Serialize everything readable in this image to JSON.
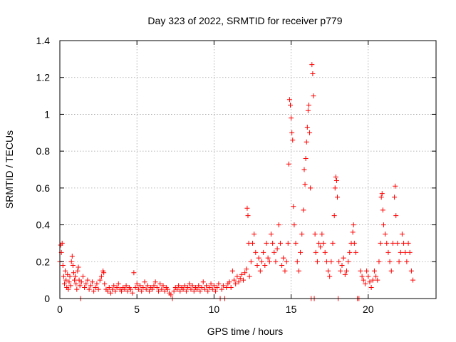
{
  "chart_data": {
    "type": "scatter",
    "title": "Day 323 of 2022, SRMTID for receiver p779",
    "xlabel": "GPS time / hours",
    "ylabel": "SRMTID / TECUs",
    "xlim": [
      0,
      24.4
    ],
    "ylim": [
      0,
      1.4
    ],
    "grid": true,
    "xticks": [
      0,
      5,
      10,
      15,
      20
    ],
    "xtick_labels": [
      "0",
      "5",
      "10",
      "15",
      "20"
    ],
    "yticks": [
      0,
      0.2,
      0.4,
      0.6,
      0.8,
      1.0,
      1.2,
      1.4
    ],
    "ytick_labels": [
      "0",
      "0.2",
      "0.4",
      "0.6",
      "0.8",
      "1",
      "1.2",
      "1.4"
    ],
    "marker": "+",
    "color": "#ff0000",
    "series": [
      {
        "name": "p779",
        "points": [
          [
            0.0,
            0.2
          ],
          [
            0.05,
            0.29
          ],
          [
            0.1,
            0.25
          ],
          [
            0.15,
            0.3
          ],
          [
            0.2,
            0.18
          ],
          [
            0.25,
            0.12
          ],
          [
            0.3,
            0.08
          ],
          [
            0.35,
            0.15
          ],
          [
            0.4,
            0.1
          ],
          [
            0.45,
            0.06
          ],
          [
            0.5,
            0.13
          ],
          [
            0.55,
            0.05
          ],
          [
            0.6,
            0.09
          ],
          [
            0.65,
            0.12
          ],
          [
            0.7,
            0.07
          ],
          [
            0.75,
            0.2
          ],
          [
            0.8,
            0.23
          ],
          [
            0.85,
            0.18
          ],
          [
            0.9,
            0.14
          ],
          [
            0.95,
            0.1
          ],
          [
            1.0,
            0.12
          ],
          [
            1.05,
            0.08
          ],
          [
            1.1,
            0.05
          ],
          [
            1.15,
            0.15
          ],
          [
            1.2,
            0.17
          ],
          [
            1.25,
            0.1
          ],
          [
            1.3,
            0.07
          ],
          [
            1.35,
            0.0
          ],
          [
            1.4,
            0.09
          ],
          [
            1.5,
            0.12
          ],
          [
            1.6,
            0.06
          ],
          [
            1.7,
            0.08
          ],
          [
            1.8,
            0.1
          ],
          [
            1.9,
            0.05
          ],
          [
            2.0,
            0.07
          ],
          [
            2.1,
            0.09
          ],
          [
            2.2,
            0.04
          ],
          [
            2.3,
            0.06
          ],
          [
            2.4,
            0.08
          ],
          [
            2.5,
            0.05
          ],
          [
            2.6,
            0.1
          ],
          [
            2.7,
            0.12
          ],
          [
            2.8,
            0.15
          ],
          [
            2.85,
            0.14
          ],
          [
            2.9,
            0.08
          ],
          [
            3.0,
            0.05
          ],
          [
            3.1,
            0.04
          ],
          [
            3.2,
            0.06
          ],
          [
            3.3,
            0.03
          ],
          [
            3.4,
            0.05
          ],
          [
            3.5,
            0.07
          ],
          [
            3.6,
            0.04
          ],
          [
            3.7,
            0.06
          ],
          [
            3.8,
            0.08
          ],
          [
            3.9,
            0.05
          ],
          [
            4.0,
            0.04
          ],
          [
            4.1,
            0.06
          ],
          [
            4.2,
            0.05
          ],
          [
            4.3,
            0.07
          ],
          [
            4.4,
            0.04
          ],
          [
            4.5,
            0.06
          ],
          [
            4.6,
            0.05
          ],
          [
            4.7,
            0.03
          ],
          [
            4.8,
            0.14
          ],
          [
            4.9,
            0.06
          ],
          [
            5.0,
            0.08
          ],
          [
            5.1,
            0.05
          ],
          [
            5.2,
            0.07
          ],
          [
            5.3,
            0.04
          ],
          [
            5.4,
            0.06
          ],
          [
            5.5,
            0.09
          ],
          [
            5.6,
            0.05
          ],
          [
            5.7,
            0.07
          ],
          [
            5.8,
            0.04
          ],
          [
            5.9,
            0.06
          ],
          [
            6.0,
            0.05
          ],
          [
            6.1,
            0.07
          ],
          [
            6.2,
            0.09
          ],
          [
            6.3,
            0.06
          ],
          [
            6.4,
            0.04
          ],
          [
            6.5,
            0.08
          ],
          [
            6.6,
            0.05
          ],
          [
            6.7,
            0.07
          ],
          [
            6.8,
            0.04
          ],
          [
            6.9,
            0.06
          ],
          [
            7.0,
            0.05
          ],
          [
            7.1,
            0.03
          ],
          [
            7.2,
            0.02
          ],
          [
            7.3,
            0.0
          ],
          [
            7.4,
            0.04
          ],
          [
            7.5,
            0.06
          ],
          [
            7.6,
            0.05
          ],
          [
            7.7,
            0.07
          ],
          [
            7.8,
            0.04
          ],
          [
            7.9,
            0.06
          ],
          [
            8.0,
            0.05
          ],
          [
            8.1,
            0.07
          ],
          [
            8.2,
            0.04
          ],
          [
            8.3,
            0.06
          ],
          [
            8.4,
            0.08
          ],
          [
            8.5,
            0.05
          ],
          [
            8.6,
            0.07
          ],
          [
            8.7,
            0.04
          ],
          [
            8.8,
            0.06
          ],
          [
            8.9,
            0.05
          ],
          [
            9.0,
            0.07
          ],
          [
            9.1,
            0.04
          ],
          [
            9.2,
            0.06
          ],
          [
            9.3,
            0.09
          ],
          [
            9.4,
            0.05
          ],
          [
            9.5,
            0.07
          ],
          [
            9.6,
            0.04
          ],
          [
            9.7,
            0.06
          ],
          [
            9.8,
            0.08
          ],
          [
            9.9,
            0.05
          ],
          [
            10.0,
            0.07
          ],
          [
            10.1,
            0.04
          ],
          [
            10.2,
            0.06
          ],
          [
            10.3,
            0.08
          ],
          [
            10.4,
            0.0
          ],
          [
            10.5,
            0.05
          ],
          [
            10.6,
            0.07
          ],
          [
            10.7,
            0.0
          ],
          [
            10.8,
            0.06
          ],
          [
            10.9,
            0.08
          ],
          [
            11.0,
            0.09
          ],
          [
            11.1,
            0.06
          ],
          [
            11.2,
            0.15
          ],
          [
            11.3,
            0.1
          ],
          [
            11.4,
            0.08
          ],
          [
            11.5,
            0.12
          ],
          [
            11.6,
            0.09
          ],
          [
            11.7,
            0.11
          ],
          [
            11.8,
            0.13
          ],
          [
            11.9,
            0.1
          ],
          [
            12.0,
            0.14
          ],
          [
            12.1,
            0.16
          ],
          [
            12.15,
            0.49
          ],
          [
            12.2,
            0.45
          ],
          [
            12.25,
            0.3
          ],
          [
            12.3,
            0.12
          ],
          [
            12.4,
            0.2
          ],
          [
            12.5,
            0.3
          ],
          [
            12.6,
            0.35
          ],
          [
            12.7,
            0.25
          ],
          [
            12.8,
            0.18
          ],
          [
            12.9,
            0.22
          ],
          [
            13.0,
            0.15
          ],
          [
            13.1,
            0.2
          ],
          [
            13.2,
            0.25
          ],
          [
            13.3,
            0.18
          ],
          [
            13.4,
            0.3
          ],
          [
            13.5,
            0.22
          ],
          [
            13.6,
            0.2
          ],
          [
            13.7,
            0.35
          ],
          [
            13.8,
            0.3
          ],
          [
            13.9,
            0.25
          ],
          [
            14.0,
            0.2
          ],
          [
            14.1,
            0.27
          ],
          [
            14.2,
            0.4
          ],
          [
            14.3,
            0.3
          ],
          [
            14.4,
            0.18
          ],
          [
            14.5,
            0.22
          ],
          [
            14.6,
            0.15
          ],
          [
            14.7,
            0.2
          ],
          [
            14.8,
            0.3
          ],
          [
            14.85,
            0.73
          ],
          [
            14.9,
            1.08
          ],
          [
            14.95,
            1.05
          ],
          [
            15.0,
            0.98
          ],
          [
            15.05,
            0.9
          ],
          [
            15.1,
            0.86
          ],
          [
            15.15,
            0.5
          ],
          [
            15.2,
            0.4
          ],
          [
            15.3,
            0.3
          ],
          [
            15.4,
            0.2
          ],
          [
            15.5,
            0.15
          ],
          [
            15.6,
            0.25
          ],
          [
            15.7,
            0.35
          ],
          [
            15.8,
            0.48
          ],
          [
            15.85,
            0.7
          ],
          [
            15.9,
            0.62
          ],
          [
            15.95,
            0.76
          ],
          [
            16.0,
            0.85
          ],
          [
            16.05,
            0.93
          ],
          [
            16.1,
            1.02
          ],
          [
            16.15,
            1.05
          ],
          [
            16.2,
            0.9
          ],
          [
            16.25,
            0.6
          ],
          [
            16.3,
            0.0
          ],
          [
            16.35,
            1.27
          ],
          [
            16.4,
            1.22
          ],
          [
            16.45,
            1.1
          ],
          [
            16.5,
            0.0
          ],
          [
            16.55,
            0.35
          ],
          [
            16.6,
            0.25
          ],
          [
            16.7,
            0.2
          ],
          [
            16.8,
            0.3
          ],
          [
            16.9,
            0.28
          ],
          [
            17.0,
            0.35
          ],
          [
            17.1,
            0.3
          ],
          [
            17.2,
            0.25
          ],
          [
            17.3,
            0.2
          ],
          [
            17.4,
            0.15
          ],
          [
            17.5,
            0.12
          ],
          [
            17.6,
            0.2
          ],
          [
            17.7,
            0.3
          ],
          [
            17.8,
            0.45
          ],
          [
            17.85,
            0.6
          ],
          [
            17.9,
            0.66
          ],
          [
            17.95,
            0.64
          ],
          [
            18.0,
            0.55
          ],
          [
            18.05,
            0.0
          ],
          [
            18.1,
            0.2
          ],
          [
            18.2,
            0.15
          ],
          [
            18.3,
            0.18
          ],
          [
            18.4,
            0.22
          ],
          [
            18.5,
            0.13
          ],
          [
            18.6,
            0.15
          ],
          [
            18.7,
            0.2
          ],
          [
            18.8,
            0.25
          ],
          [
            18.9,
            0.3
          ],
          [
            19.0,
            0.36
          ],
          [
            19.05,
            0.4
          ],
          [
            19.1,
            0.3
          ],
          [
            19.2,
            0.25
          ],
          [
            19.3,
            0.0
          ],
          [
            19.4,
            0.0
          ],
          [
            19.5,
            0.15
          ],
          [
            19.6,
            0.12
          ],
          [
            19.7,
            0.1
          ],
          [
            19.8,
            0.08
          ],
          [
            19.9,
            0.15
          ],
          [
            20.0,
            0.12
          ],
          [
            20.1,
            0.09
          ],
          [
            20.2,
            0.06
          ],
          [
            20.3,
            0.1
          ],
          [
            20.4,
            0.15
          ],
          [
            20.5,
            0.12
          ],
          [
            20.6,
            0.1
          ],
          [
            20.7,
            0.2
          ],
          [
            20.8,
            0.3
          ],
          [
            20.85,
            0.55
          ],
          [
            20.9,
            0.57
          ],
          [
            20.95,
            0.48
          ],
          [
            21.0,
            0.4
          ],
          [
            21.1,
            0.35
          ],
          [
            21.2,
            0.3
          ],
          [
            21.3,
            0.25
          ],
          [
            21.4,
            0.2
          ],
          [
            21.5,
            0.15
          ],
          [
            21.6,
            0.3
          ],
          [
            21.7,
            0.55
          ],
          [
            21.75,
            0.61
          ],
          [
            21.8,
            0.45
          ],
          [
            21.9,
            0.3
          ],
          [
            22.0,
            0.2
          ],
          [
            22.1,
            0.25
          ],
          [
            22.2,
            0.35
          ],
          [
            22.3,
            0.3
          ],
          [
            22.4,
            0.25
          ],
          [
            22.5,
            0.2
          ],
          [
            22.6,
            0.3
          ],
          [
            22.7,
            0.25
          ],
          [
            22.8,
            0.15
          ],
          [
            22.9,
            0.1
          ]
        ]
      }
    ]
  }
}
